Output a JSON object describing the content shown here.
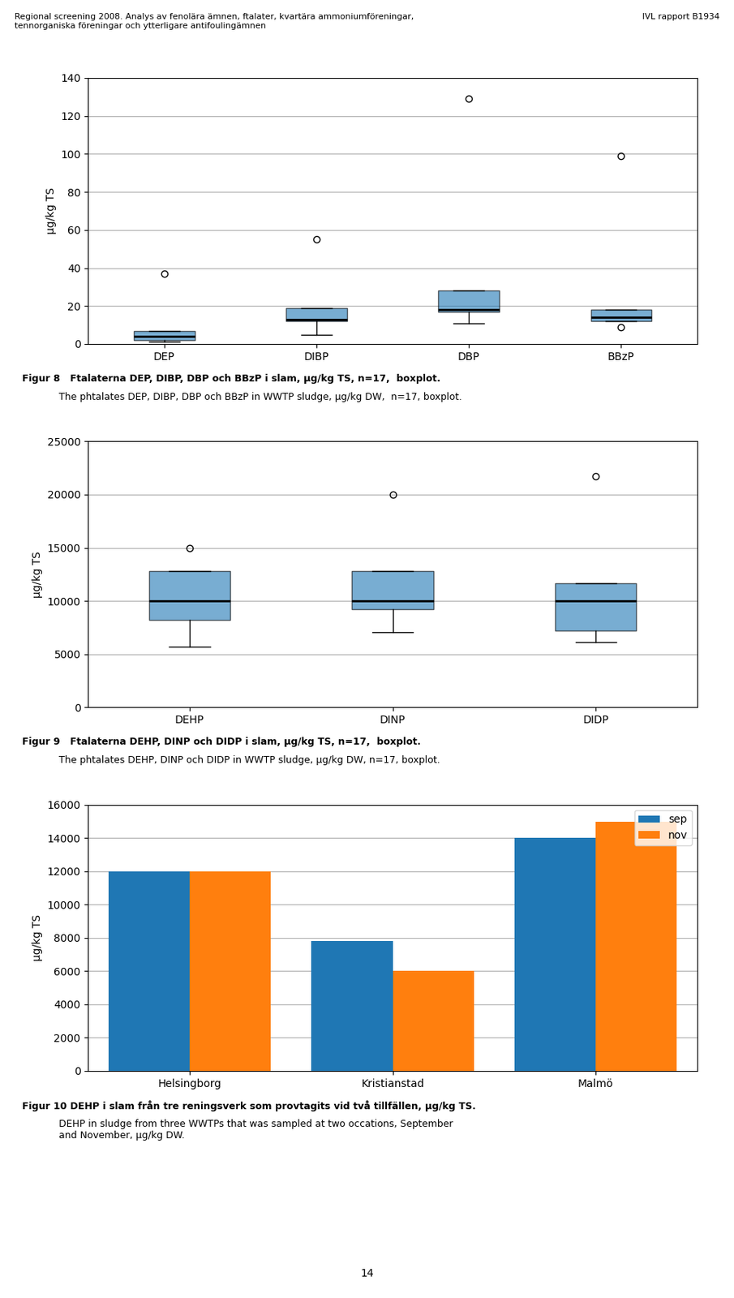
{
  "annotations": [
    "Regional screening 2008. Analys av fenolära ämnen, ftalater, kvartära ammoniumföreningar,\ntennorganiska föreningar och ytterligare antifoulingämnen",
    "IVL rapport B1934",
    "14"
  ],
  "chart_data": [
    {
      "type": "box",
      "title": "Figur 8   Ftalaterna DEP, DIBP, DBP och BBzP i slam, µg/kg TS, n=17,  boxplot.",
      "subtitle": "The phtalates DEP, DIBP, DBP och BBzP in WWTP sludge, µg/kg DW,  n=17, boxplot.",
      "ylabel": "µg/kg TS",
      "ylim": [
        0,
        140
      ],
      "yticks": [
        0,
        20,
        40,
        60,
        80,
        100,
        120,
        140
      ],
      "grid": true,
      "categories": [
        "DEP",
        "DIBP",
        "DBP",
        "BBzP"
      ],
      "boxes": [
        {
          "q1": 2,
          "median": 4,
          "q3": 7,
          "whislo": 1,
          "whishi": 7,
          "fliers": [
            37
          ]
        },
        {
          "q1": 12,
          "median": 13,
          "q3": 19,
          "whislo": 5,
          "whishi": 19,
          "fliers": [
            55
          ]
        },
        {
          "q1": 17,
          "median": 18,
          "q3": 28,
          "whislo": 11,
          "whishi": 28,
          "fliers": [
            129
          ]
        },
        {
          "q1": 12,
          "median": 14,
          "q3": 18,
          "whislo": 12,
          "whishi": 18,
          "fliers": [
            99,
            9
          ]
        }
      ]
    },
    {
      "type": "box",
      "title": "Figur 9   Ftalaterna DEHP, DINP och DIDP i slam, µg/kg TS, n=17,  boxplot.",
      "subtitle": "The phtalates DEHP, DINP och DIDP in WWTP sludge, µg/kg DW, n=17, boxplot.",
      "ylabel": "µg/kg TS",
      "ylim": [
        0,
        25000
      ],
      "yticks": [
        0,
        5000,
        10000,
        15000,
        20000,
        25000
      ],
      "grid": true,
      "categories": [
        "DEHP",
        "DINP",
        "DIDP"
      ],
      "boxes": [
        {
          "q1": 8200,
          "median": 10000,
          "q3": 12800,
          "whislo": 5700,
          "whishi": 12800,
          "fliers": [
            15000
          ]
        },
        {
          "q1": 9200,
          "median": 10000,
          "q3": 12800,
          "whislo": 7100,
          "whishi": 12800,
          "fliers": [
            20000
          ]
        },
        {
          "q1": 7200,
          "median": 10000,
          "q3": 11700,
          "whislo": 6100,
          "whishi": 11700,
          "fliers": [
            21700
          ]
        }
      ]
    },
    {
      "type": "bar",
      "title": "Figur 10 DEHP i slam från tre reningsverk som provtagits vid två tillfällen, µg/kg TS.",
      "subtitle": "DEHP in sludge from three WWTPs that was sampled at two occations, September\nand November, µg/kg DW.",
      "ylabel": "µg/kg TS",
      "ylim": [
        0,
        16000
      ],
      "yticks": [
        0,
        2000,
        4000,
        6000,
        8000,
        10000,
        12000,
        14000,
        16000
      ],
      "grid": true,
      "legend": "upper right",
      "categories": [
        "Helsingborg",
        "Kristianstad",
        "Malmö"
      ],
      "series": [
        {
          "name": "sep",
          "values": [
            12000,
            7800,
            14000
          ]
        },
        {
          "name": "nov",
          "values": [
            12000,
            6000,
            15000
          ]
        }
      ]
    }
  ]
}
